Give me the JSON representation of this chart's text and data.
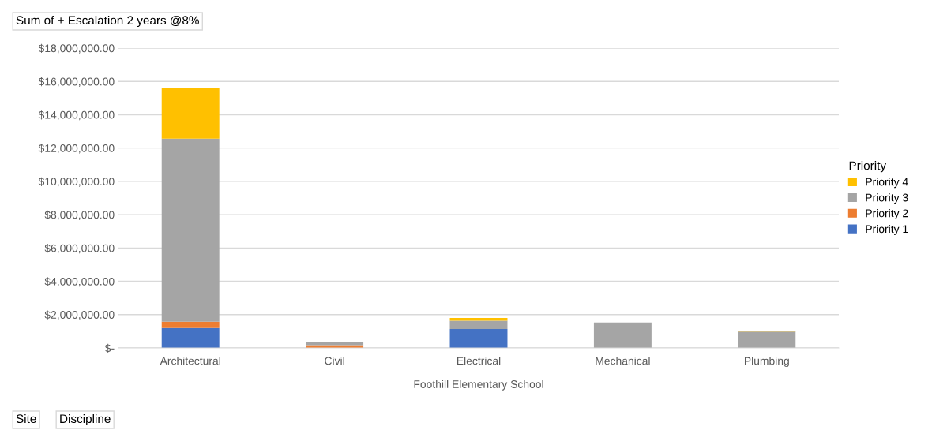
{
  "chart_data": {
    "type": "bar",
    "stacked": true,
    "title": "Sum of + Escalation 2 years @8%",
    "xlabel": "Foothill Elementary School",
    "categories": [
      "Architectural",
      "Civil",
      "Electrical",
      "Mechanical",
      "Plumbing"
    ],
    "series": [
      {
        "name": "Priority 1",
        "color": "#4472c4",
        "values": [
          1200000,
          0,
          1140000,
          0,
          0
        ]
      },
      {
        "name": "Priority 2",
        "color": "#ed7d31",
        "values": [
          380000,
          160000,
          0,
          0,
          0
        ]
      },
      {
        "name": "Priority 3",
        "color": "#a5a5a5",
        "values": [
          10990000,
          220000,
          490000,
          1530000,
          980000
        ]
      },
      {
        "name": "Priority 4",
        "color": "#ffc000",
        "values": [
          3030000,
          0,
          170000,
          0,
          40000
        ]
      }
    ],
    "legend_title": "Priority",
    "legend": "right",
    "grid": "y",
    "ylim": [
      0,
      18000000
    ],
    "yticks": [
      {
        "value": 0,
        "label": "$-"
      },
      {
        "value": 2000000,
        "label": "$2,000,000.00"
      },
      {
        "value": 4000000,
        "label": "$4,000,000.00"
      },
      {
        "value": 6000000,
        "label": "$6,000,000.00"
      },
      {
        "value": 8000000,
        "label": "$8,000,000.00"
      },
      {
        "value": 10000000,
        "label": "$10,000,000.00"
      },
      {
        "value": 12000000,
        "label": "$12,000,000.00"
      },
      {
        "value": 14000000,
        "label": "$14,000,000.00"
      },
      {
        "value": 16000000,
        "label": "$16,000,000.00"
      },
      {
        "value": 18000000,
        "label": "$18,000,000.00"
      }
    ],
    "annotations": [
      "Site",
      "Discipline"
    ]
  }
}
